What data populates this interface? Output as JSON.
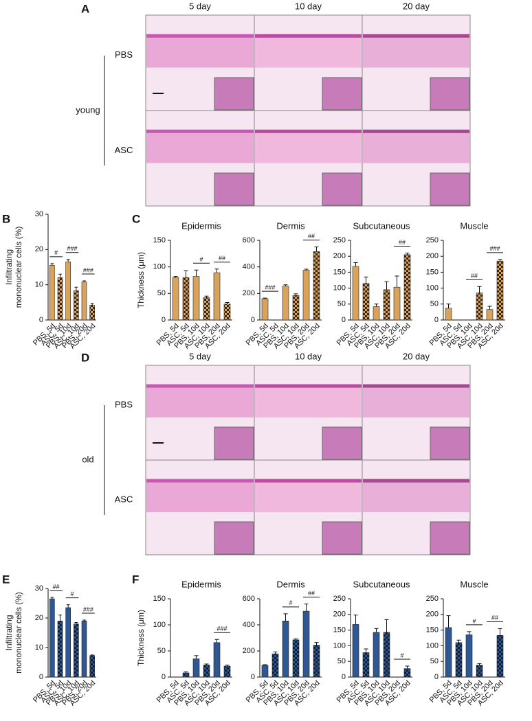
{
  "panel_labels": [
    "A",
    "B",
    "C",
    "D",
    "E",
    "F"
  ],
  "image_panels": [
    {
      "columns": [
        "5 day",
        "10 day",
        "20 day"
      ],
      "rows": [
        "PBS",
        "ASC"
      ],
      "group": "young"
    },
    {
      "columns": [
        "5 day",
        "10 day",
        "20 day"
      ],
      "rows": [
        "PBS",
        "ASC"
      ],
      "group": "old"
    }
  ],
  "chart_data": [
    {
      "type": "bar",
      "y_label": [
        "Infiltrating",
        "mononuclear cells (%)"
      ],
      "categories": [
        "PBS, 5d",
        "ASC, 5d",
        "PBS, 10d",
        "ASC, 10d",
        "PBS, 20d",
        "ASC, 20d"
      ],
      "values": [
        15.5,
        12,
        16.5,
        8.3,
        10.8,
        4.2
      ],
      "errors": [
        0.5,
        1,
        0.7,
        1,
        0.3,
        0.5
      ],
      "color": "#d9a35b",
      "pattern_color": "#3b2614",
      "patterns": [
        "solid",
        "checker",
        "solid",
        "checker",
        "solid",
        "checker"
      ],
      "ylim": [
        0,
        30
      ],
      "yticks": [
        0,
        10,
        20,
        30
      ],
      "significance": [
        {
          "label": "#",
          "from": 0,
          "to": 1
        },
        {
          "label": "###",
          "from": 2,
          "to": 3
        },
        {
          "label": "###",
          "from": 4,
          "to": 5
        }
      ]
    },
    {
      "type": "bar",
      "title": "Epidermis",
      "y_label": [
        "Thickness (μm)"
      ],
      "categories": [
        "PBS, 5d",
        "ASC, 5d",
        "PBS, 10d",
        "ASC, 10d",
        "PBS, 20d",
        "ASC, 20d"
      ],
      "values": [
        80,
        80,
        82,
        42,
        89,
        30
      ],
      "errors": [
        2,
        13,
        12,
        3,
        7,
        3
      ],
      "color": "#d9a35b",
      "pattern_color": "#3b2614",
      "patterns": [
        "solid",
        "checker",
        "solid",
        "checker",
        "solid",
        "checker"
      ],
      "ylim": [
        0,
        150
      ],
      "yticks": [
        0,
        50,
        100,
        150
      ],
      "significance": [
        {
          "label": "#",
          "from": 2,
          "to": 3
        },
        {
          "label": "##",
          "from": 4,
          "to": 5
        }
      ]
    },
    {
      "type": "bar",
      "title": "Dermis",
      "categories": [
        "PBS, 5d",
        "ASC, 5d",
        "PBS, 10d",
        "ASC, 10d",
        "PBS, 20d",
        "ASC, 20d"
      ],
      "values": [
        160,
        0,
        255,
        185,
        375,
        515
      ],
      "errors": [
        5,
        0,
        10,
        12,
        8,
        35
      ],
      "color": "#d9a35b",
      "pattern_color": "#3b2614",
      "patterns": [
        "solid",
        "checker",
        "solid",
        "checker",
        "solid",
        "checker"
      ],
      "ylim": [
        0,
        600
      ],
      "yticks": [
        0,
        200,
        400,
        600
      ],
      "significance": [
        {
          "label": "###",
          "from": 0,
          "to": 1
        },
        {
          "label": "##",
          "from": 4,
          "to": 5
        }
      ]
    },
    {
      "type": "bar",
      "title": "Subcutaneous",
      "categories": [
        "PBS, 5d",
        "ASC, 5d",
        "PBS, 10d",
        "ASC, 10d",
        "PBS, 20d",
        "ASC, 20d"
      ],
      "values": [
        168,
        115,
        42,
        95,
        103,
        205
      ],
      "errors": [
        12,
        20,
        8,
        25,
        35,
        5
      ],
      "color": "#d9a35b",
      "pattern_color": "#3b2614",
      "patterns": [
        "solid",
        "checker",
        "solid",
        "checker",
        "solid",
        "checker"
      ],
      "ylim": [
        0,
        250
      ],
      "yticks": [
        0,
        50,
        100,
        150,
        200,
        250
      ],
      "significance": [
        {
          "label": "##",
          "from": 4,
          "to": 5
        }
      ]
    },
    {
      "type": "bar",
      "title": "Muscle",
      "categories": [
        "PBS, 5d",
        "ASC, 5d",
        "PBS, 10d",
        "ASC, 10d",
        "PBS, 20d",
        "ASC, 20d"
      ],
      "values": [
        37,
        0,
        0,
        85,
        33,
        185
      ],
      "errors": [
        13,
        0,
        0,
        20,
        10,
        5
      ],
      "color": "#d9a35b",
      "pattern_color": "#3b2614",
      "patterns": [
        "solid",
        "checker",
        "solid",
        "checker",
        "solid",
        "checker"
      ],
      "ylim": [
        0,
        250
      ],
      "yticks": [
        0,
        50,
        100,
        150,
        200,
        250
      ],
      "significance": [
        {
          "label": "##",
          "from": 2,
          "to": 3
        },
        {
          "label": "###",
          "from": 4,
          "to": 5
        }
      ]
    },
    {
      "type": "bar",
      "y_label": [
        "Infiltrating",
        "mononuclear cells (%)"
      ],
      "categories": [
        "PBS, 5d",
        "ASC, 5d",
        "PBS, 10d",
        "ASC, 10d",
        "PBS, 20d",
        "ASC, 20d"
      ],
      "values": [
        26.5,
        19,
        23.5,
        18,
        19,
        7.3
      ],
      "errors": [
        0.5,
        2,
        1,
        0.5,
        0.3,
        0.2
      ],
      "color": "#2f5892",
      "pattern_color": "#0f1e35",
      "patterns": [
        "solid",
        "checker",
        "solid",
        "checker",
        "solid",
        "checker"
      ],
      "ylim": [
        0,
        30
      ],
      "yticks": [
        0,
        10,
        20,
        30
      ],
      "significance": [
        {
          "label": "##",
          "from": 0,
          "to": 1
        },
        {
          "label": "#",
          "from": 2,
          "to": 3
        },
        {
          "label": "###",
          "from": 4,
          "to": 5
        }
      ]
    },
    {
      "type": "bar",
      "title": "Epidermis",
      "y_label": [
        "Thickness (μm)"
      ],
      "categories": [
        "PBS, 5d",
        "ASC, 5d",
        "PBS, 10d",
        "ASC, 10d",
        "PBS, 20d",
        "ASC, 20d"
      ],
      "values": [
        0,
        8,
        35,
        23,
        66,
        21
      ],
      "errors": [
        0,
        2,
        6,
        2,
        6,
        2
      ],
      "color": "#2f5892",
      "pattern_color": "#0f1e35",
      "patterns": [
        "solid",
        "checker",
        "solid",
        "checker",
        "solid",
        "checker"
      ],
      "ylim": [
        0,
        150
      ],
      "yticks": [
        0,
        50,
        100,
        150
      ],
      "significance": [
        {
          "label": "###",
          "from": 4,
          "to": 5
        }
      ]
    },
    {
      "type": "bar",
      "title": "Dermis",
      "categories": [
        "PBS, 5d",
        "ASC, 5d",
        "PBS, 10d",
        "ASC, 10d",
        "PBS, 20d",
        "ASC, 20d"
      ],
      "values": [
        90,
        178,
        430,
        285,
        505,
        245
      ],
      "errors": [
        5,
        15,
        55,
        8,
        55,
        20
      ],
      "color": "#2f5892",
      "pattern_color": "#0f1e35",
      "patterns": [
        "solid",
        "checker",
        "solid",
        "checker",
        "solid",
        "checker"
      ],
      "ylim": [
        0,
        600
      ],
      "yticks": [
        0,
        200,
        400,
        600
      ],
      "significance": [
        {
          "label": "#",
          "from": 2,
          "to": 3
        },
        {
          "label": "##",
          "from": 4,
          "to": 5
        }
      ]
    },
    {
      "type": "bar",
      "title": "Subcutaneous",
      "categories": [
        "PBS, 5d",
        "ASC, 5d",
        "PBS, 10d",
        "ASC, 10d",
        "PBS, 20d",
        "ASC, 20d"
      ],
      "values": [
        168,
        78,
        143,
        143,
        0,
        27
      ],
      "errors": [
        30,
        12,
        12,
        40,
        0,
        8
      ],
      "color": "#2f5892",
      "pattern_color": "#0f1e35",
      "patterns": [
        "solid",
        "checker",
        "solid",
        "checker",
        "solid",
        "checker"
      ],
      "ylim": [
        0,
        250
      ],
      "yticks": [
        0,
        50,
        100,
        150,
        200,
        250
      ],
      "significance": [
        {
          "label": "#",
          "from": 4,
          "to": 5
        }
      ]
    },
    {
      "type": "bar",
      "title": "Muscle",
      "categories": [
        "PBS, 5d",
        "ASC, 5d",
        "PBS, 10d",
        "ASC, 10d",
        "PBS, 20d",
        "ASC, 20d"
      ],
      "values": [
        158,
        110,
        135,
        38,
        0,
        133
      ],
      "errors": [
        38,
        8,
        10,
        5,
        0,
        22
      ],
      "color": "#2f5892",
      "pattern_color": "#0f1e35",
      "patterns": [
        "solid",
        "checker",
        "solid",
        "checker",
        "solid",
        "checker"
      ],
      "ylim": [
        0,
        250
      ],
      "yticks": [
        0,
        50,
        100,
        150,
        200,
        250
      ],
      "significance": [
        {
          "label": "#",
          "from": 2,
          "to": 3
        },
        {
          "label": "##",
          "from": 4,
          "to": 5
        }
      ]
    }
  ]
}
